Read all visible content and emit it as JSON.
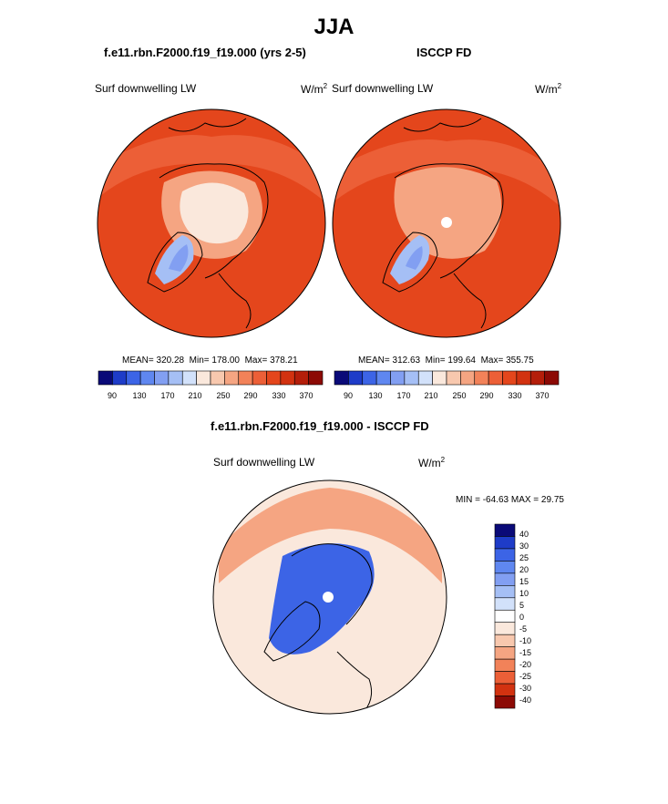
{
  "figure": {
    "title": "JJA"
  },
  "panels": [
    {
      "title": "f.e11.rbn.F2000.f19_f19.000 (yrs 2-5)",
      "variable": "Surf downwelling LW",
      "units_base": "W/m",
      "units_exp": "2",
      "mean_text": "MEAN= 320.28",
      "min_text": "Min= 178.00",
      "max_text": "Max= 378.21"
    },
    {
      "title": "ISCCP FD",
      "variable": "Surf downwelling LW",
      "units_base": "W/m",
      "units_exp": "2",
      "mean_text": "MEAN= 312.63",
      "min_text": "Min= 199.64",
      "max_text": "Max= 355.75"
    },
    {
      "title": "f.e11.rbn.F2000.f19_f19.000 - ISCCP FD",
      "variable": "Surf downwelling LW",
      "units_base": "W/m",
      "units_exp": "2",
      "minmax_text": "MIN = -64.63 MAX =  29.75"
    }
  ],
  "abs_colorbar": {
    "colors": [
      "#0a0a78",
      "#1e3cc8",
      "#3c64e6",
      "#5f87f0",
      "#829ff2",
      "#a5bff5",
      "#d2e1fa",
      "#fae8dc",
      "#f8c8ae",
      "#f5a582",
      "#f28259",
      "#ec5f37",
      "#e4461c",
      "#d23210",
      "#b41e0a",
      "#8c0a05"
    ],
    "labels": [
      "90",
      "130",
      "170",
      "210",
      "250",
      "290",
      "330",
      "370"
    ]
  },
  "diff_colorbar": {
    "colors": [
      "#0a0a78",
      "#1e3cc8",
      "#3c64e6",
      "#5f87f0",
      "#829ff2",
      "#a5bff5",
      "#d2e1fa",
      "#ffffff",
      "#fae8dc",
      "#f8c8ae",
      "#f5a582",
      "#f28259",
      "#ec5f37",
      "#d23210",
      "#8c0a05"
    ],
    "labels": [
      "40",
      "30",
      "25",
      "20",
      "15",
      "10",
      "5",
      "0",
      "-5",
      "-10",
      "-15",
      "-20",
      "-25",
      "-30",
      "-40"
    ]
  },
  "fill_colors": {
    "ocean_base": "#e4461c",
    "warm_mid": "#ec5f37",
    "warm_light": "#f5a582",
    "pale": "#fae8dc",
    "greenland": "#829ff2",
    "greenland_light": "#a5bff5",
    "coast": "#000000",
    "diff_base": "#fae8dc",
    "diff_blue": "#3c64e6"
  }
}
